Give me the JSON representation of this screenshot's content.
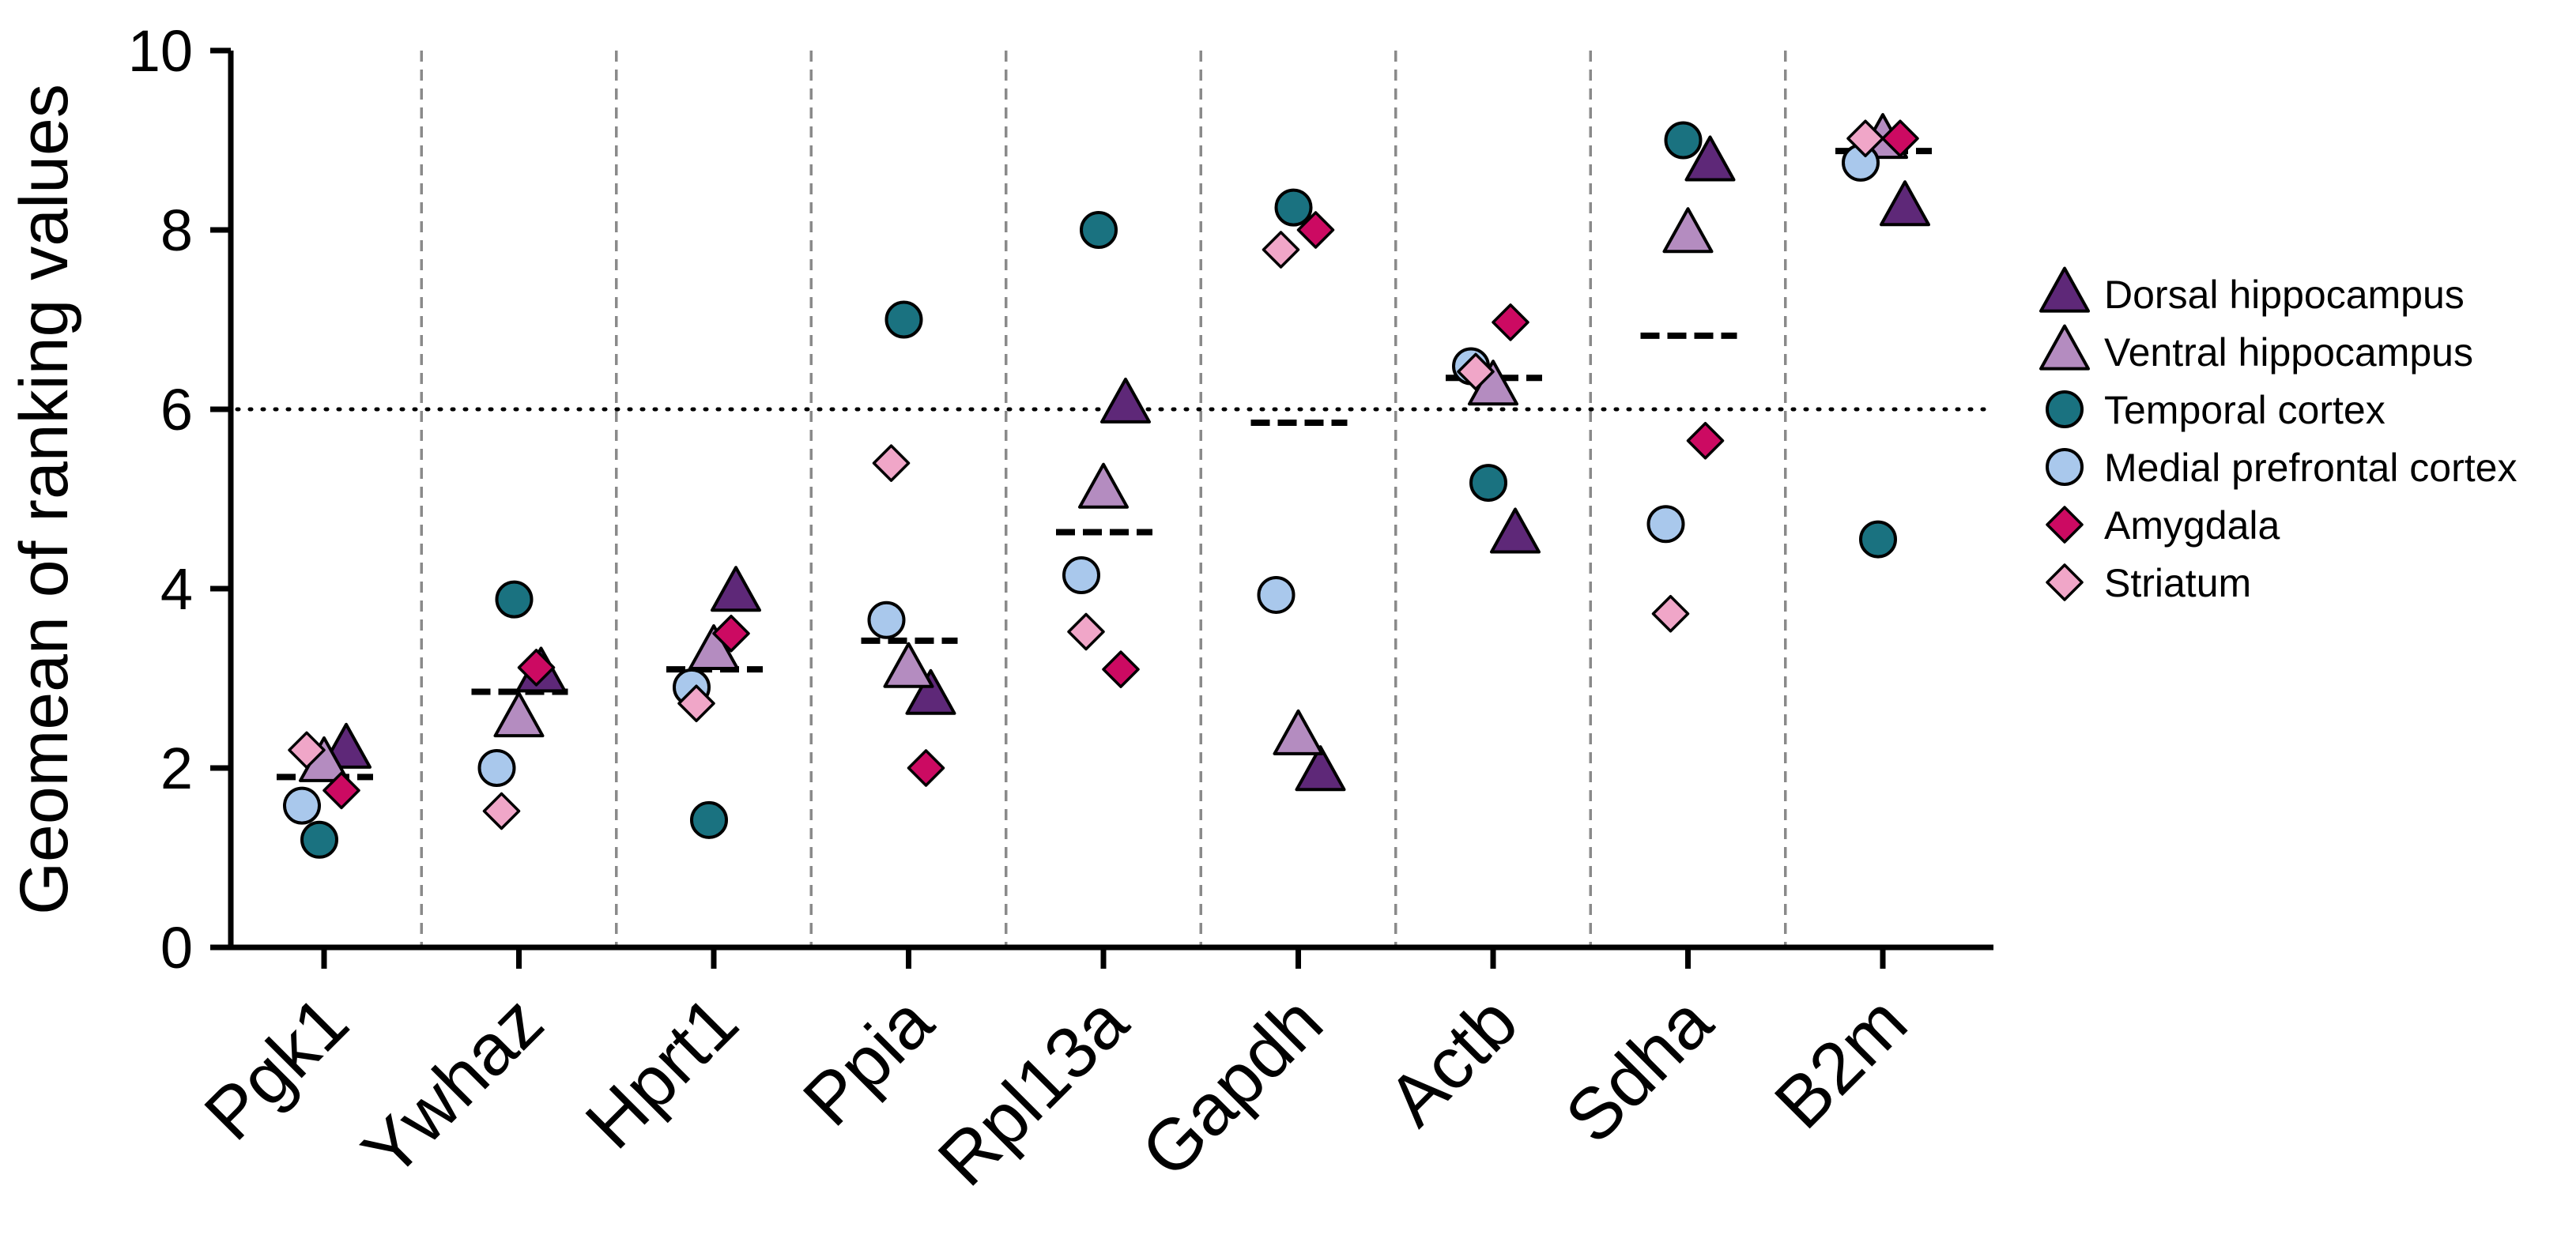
{
  "chart_data": {
    "type": "scatter",
    "title": "",
    "xlabel": "",
    "ylabel": "Geomean of ranking values",
    "ylim": [
      0,
      10
    ],
    "yticks": [
      0,
      2,
      4,
      6,
      8,
      10
    ],
    "reference_line": 6,
    "categories": [
      "Pgk1",
      "Ywhaz",
      "Hprt1",
      "Ppia",
      "Rpl13a",
      "Gapdh",
      "Actb",
      "Sdha",
      "B2m"
    ],
    "means": [
      1.9,
      2.85,
      3.1,
      3.42,
      4.63,
      5.85,
      6.35,
      6.82,
      8.88
    ],
    "series": [
      {
        "name": "Dorsal hippocampus",
        "marker": "triangle",
        "color": "#5e2878",
        "values": [
          2.2,
          3.05,
          3.95,
          2.8,
          6.05,
          1.95,
          4.6,
          8.75,
          8.25
        ]
      },
      {
        "name": "Ventral hippocampus",
        "marker": "triangle",
        "color": "#b48cc0",
        "values": [
          2.05,
          2.55,
          3.3,
          3.1,
          5.1,
          2.35,
          6.25,
          7.95,
          9.0
        ]
      },
      {
        "name": "Temporal cortex",
        "marker": "circle",
        "color": "#1a7280",
        "values": [
          1.2,
          3.88,
          1.42,
          7.0,
          8.0,
          8.25,
          5.18,
          9.0,
          4.55
        ]
      },
      {
        "name": "Medial prefrontal cortex",
        "marker": "circle",
        "color": "#a9c8ec",
        "values": [
          1.58,
          2.0,
          2.9,
          3.65,
          4.15,
          3.93,
          6.48,
          4.72,
          8.75
        ]
      },
      {
        "name": "Amygdala",
        "marker": "diamond",
        "color": "#cc0a62",
        "values": [
          1.75,
          3.12,
          3.5,
          2.0,
          3.1,
          8.0,
          6.97,
          5.65,
          9.02
        ]
      },
      {
        "name": "Striatum",
        "marker": "diamond",
        "color": "#f0a6c8",
        "values": [
          2.2,
          1.52,
          2.72,
          5.4,
          3.52,
          7.78,
          6.42,
          3.72,
          9.02
        ]
      }
    ]
  }
}
